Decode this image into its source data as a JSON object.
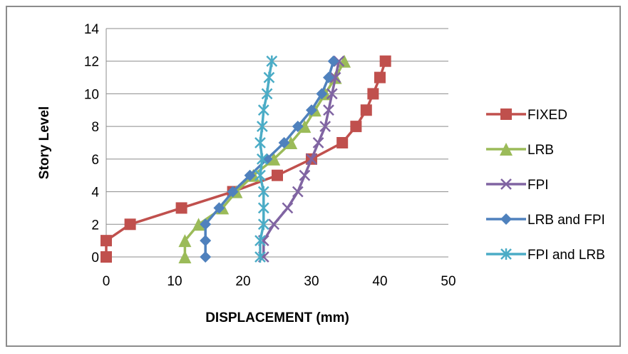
{
  "chart_data": {
    "type": "line",
    "title": "",
    "xlabel": "DISPLACEMENT (mm)",
    "ylabel": "Story  Level",
    "xlim": [
      0,
      50
    ],
    "ylim": [
      0,
      14
    ],
    "xticks": [
      0,
      10,
      20,
      30,
      40,
      50
    ],
    "yticks": [
      0,
      2,
      4,
      6,
      8,
      10,
      12,
      14
    ],
    "grid": "horizontal",
    "legend_position": "right",
    "series": [
      {
        "name": "FIXED",
        "color": "#c0504d",
        "marker": "square",
        "points": [
          [
            0,
            0
          ],
          [
            0,
            1
          ],
          [
            3.5,
            2
          ],
          [
            11,
            3
          ],
          [
            18.5,
            4
          ],
          [
            25,
            5
          ],
          [
            30,
            6
          ],
          [
            34.5,
            7
          ],
          [
            36.5,
            8
          ],
          [
            38,
            9
          ],
          [
            39,
            10
          ],
          [
            40,
            11
          ],
          [
            40.8,
            12
          ]
        ]
      },
      {
        "name": "LRB",
        "color": "#9bbb59",
        "marker": "triangle",
        "points": [
          [
            11.5,
            0
          ],
          [
            11.5,
            1
          ],
          [
            13.5,
            2
          ],
          [
            17,
            3
          ],
          [
            19,
            4
          ],
          [
            21.5,
            5
          ],
          [
            24.5,
            6
          ],
          [
            27,
            7
          ],
          [
            29,
            8
          ],
          [
            30.5,
            9
          ],
          [
            32,
            10
          ],
          [
            33.5,
            11
          ],
          [
            34.8,
            12
          ]
        ]
      },
      {
        "name": "FPI",
        "color": "#8064a2",
        "marker": "x",
        "points": [
          [
            23,
            0
          ],
          [
            23,
            1
          ],
          [
            24.5,
            2
          ],
          [
            26.5,
            3
          ],
          [
            28,
            4
          ],
          [
            29,
            5
          ],
          [
            30,
            6
          ],
          [
            31,
            7
          ],
          [
            32,
            8
          ],
          [
            32.5,
            9
          ],
          [
            33,
            10
          ],
          [
            33.5,
            11
          ],
          [
            34,
            12
          ]
        ]
      },
      {
        "name": "LRB and FPI",
        "color": "#4f81bd",
        "marker": "diamond",
        "points": [
          [
            14.5,
            0
          ],
          [
            14.5,
            1
          ],
          [
            14.5,
            2
          ],
          [
            16.5,
            3
          ],
          [
            18.5,
            4
          ],
          [
            21,
            5
          ],
          [
            23.5,
            6
          ],
          [
            26,
            7
          ],
          [
            28,
            8
          ],
          [
            30,
            9
          ],
          [
            31.5,
            10
          ],
          [
            32.5,
            11
          ],
          [
            33.2,
            12
          ]
        ]
      },
      {
        "name": "FPI and LRB",
        "color": "#4bacc6",
        "marker": "asterisk",
        "points": [
          [
            22.5,
            0
          ],
          [
            22.5,
            1
          ],
          [
            23,
            2
          ],
          [
            23,
            3
          ],
          [
            23,
            4
          ],
          [
            22.5,
            5
          ],
          [
            22.8,
            6
          ],
          [
            22.5,
            7
          ],
          [
            22.8,
            8
          ],
          [
            23,
            9
          ],
          [
            23.5,
            10
          ],
          [
            23.8,
            11
          ],
          [
            24.2,
            12
          ]
        ]
      }
    ]
  }
}
